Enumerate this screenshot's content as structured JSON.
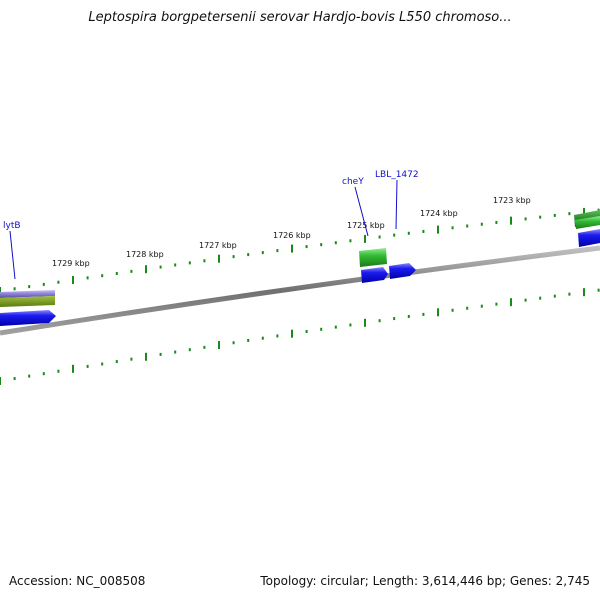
{
  "title": "Leptospira borgpetersenii serovar Hardjo-bovis L550 chromoso...",
  "footer": {
    "accession": "Accession: NC_008508",
    "summary": "Topology: circular; Length: 3,614,446 bp; Genes: 2,745"
  },
  "ticks": [
    {
      "label": "1729 kbp"
    },
    {
      "label": "1728 kbp"
    },
    {
      "label": "1727 kbp"
    },
    {
      "label": "1726 kbp"
    },
    {
      "label": "1725 kbp"
    },
    {
      "label": "1724 kbp"
    },
    {
      "label": "1723 kbp"
    }
  ],
  "genes": [
    {
      "name": "lytB",
      "strand": "forward"
    },
    {
      "name": "cheY",
      "strand": "forward"
    },
    {
      "name": "LBL_1472",
      "strand": "forward"
    }
  ],
  "colors": {
    "backbone": "#808080",
    "forward_gene": "#1a1aee",
    "feature_green": "#33bb33",
    "feature_purple": "#8a7fd0",
    "ticks": "#1a8a1a",
    "labels": "#1010cc"
  }
}
